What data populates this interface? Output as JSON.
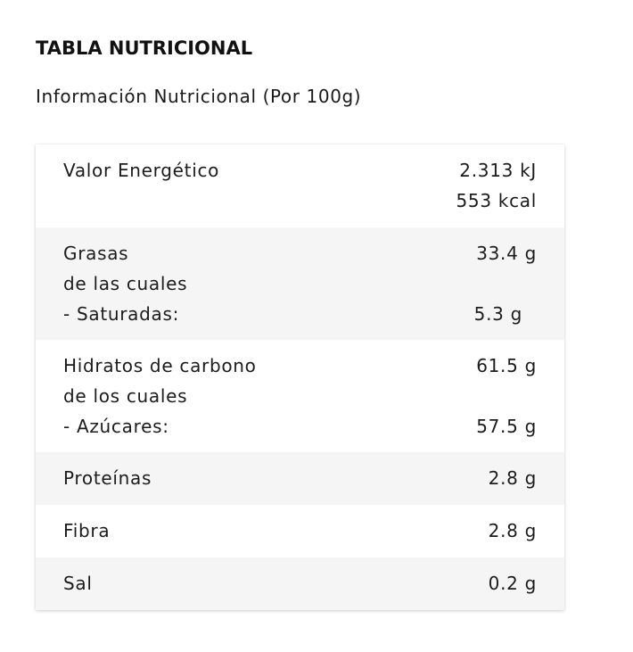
{
  "heading": "TABLA NUTRICIONAL",
  "subheading": "Información Nutricional (Por 100g)",
  "rows": [
    {
      "lines": [
        {
          "label": "Valor Energético",
          "value": "2.313 kJ"
        },
        {
          "label": "",
          "value": "553 kcal"
        }
      ]
    },
    {
      "lines": [
        {
          "label": "Grasas",
          "value": "33.4 g"
        },
        {
          "label": "de las cuales",
          "value": ""
        },
        {
          "label": "- Saturadas:",
          "value": "5.3 g"
        }
      ]
    },
    {
      "lines": [
        {
          "label": "Hidratos de carbono",
          "value": "61.5 g"
        },
        {
          "label": "de los cuales",
          "value": ""
        },
        {
          "label": "- Azúcares:",
          "value": "57.5 g"
        }
      ]
    },
    {
      "lines": [
        {
          "label": "Proteínas",
          "value": "2.8 g"
        }
      ]
    },
    {
      "lines": [
        {
          "label": "Fibra",
          "value": "2.8 g"
        }
      ]
    },
    {
      "lines": [
        {
          "label": "Sal",
          "value": "0.2 g"
        }
      ]
    }
  ]
}
